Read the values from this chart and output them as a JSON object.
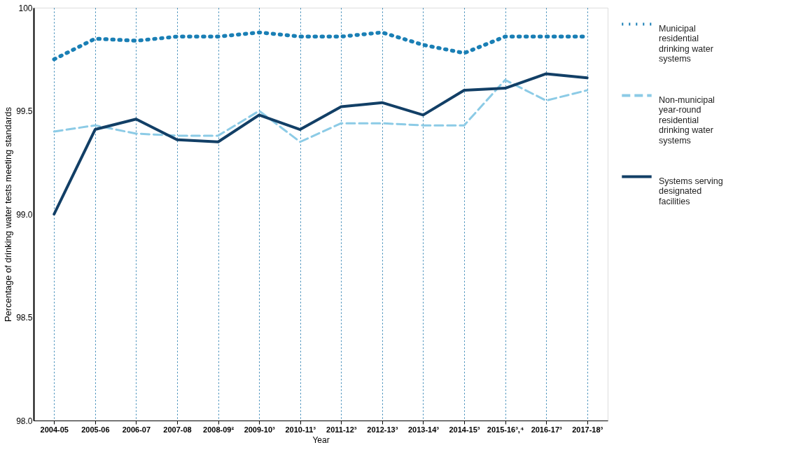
{
  "chart_data": {
    "type": "line",
    "xlabel": "Year",
    "ylabel": "Percentage of drinking water tests meeting standards",
    "categories": [
      "2004-05",
      "2005-06",
      "2006-07",
      "2007-08",
      "2008-09²",
      "2009-10³",
      "2010-11³",
      "2011-12³",
      "2012-13³",
      "2013-14³",
      "2014-15³",
      "2015-16³,⁴",
      "2016-17³",
      "2017-18³"
    ],
    "series": [
      {
        "name": "Municipal residential drinking water systems",
        "color": "#1a7fb5",
        "line_style": "dotted",
        "values": [
          99.75,
          99.85,
          99.84,
          99.86,
          99.86,
          99.88,
          99.86,
          99.86,
          99.88,
          99.82,
          99.78,
          99.86,
          99.86,
          99.86
        ]
      },
      {
        "name": "Non-municipal year-round residential drinking water systems",
        "color": "#8ccbe6",
        "line_style": "dashed",
        "values": [
          99.4,
          99.43,
          99.39,
          99.38,
          99.38,
          99.5,
          99.35,
          99.44,
          99.44,
          99.43,
          99.43,
          99.65,
          99.55,
          99.6
        ]
      },
      {
        "name": "Systems serving designated facilities",
        "color": "#123f66",
        "line_style": "solid",
        "values": [
          99.0,
          99.41,
          99.46,
          99.36,
          99.35,
          99.48,
          99.41,
          99.52,
          99.54,
          99.48,
          99.6,
          99.61,
          99.68,
          99.66
        ]
      }
    ],
    "ylim": [
      98.0,
      100
    ],
    "yticks": [
      {
        "value": 98.0,
        "label": "98.0"
      },
      {
        "value": 98.5,
        "label": "98.5"
      },
      {
        "value": 99.0,
        "label": "99.0"
      },
      {
        "value": 99.5,
        "label": "99.5"
      },
      100
    ],
    "grid": "x",
    "legend": "right",
    "marker": "none"
  }
}
